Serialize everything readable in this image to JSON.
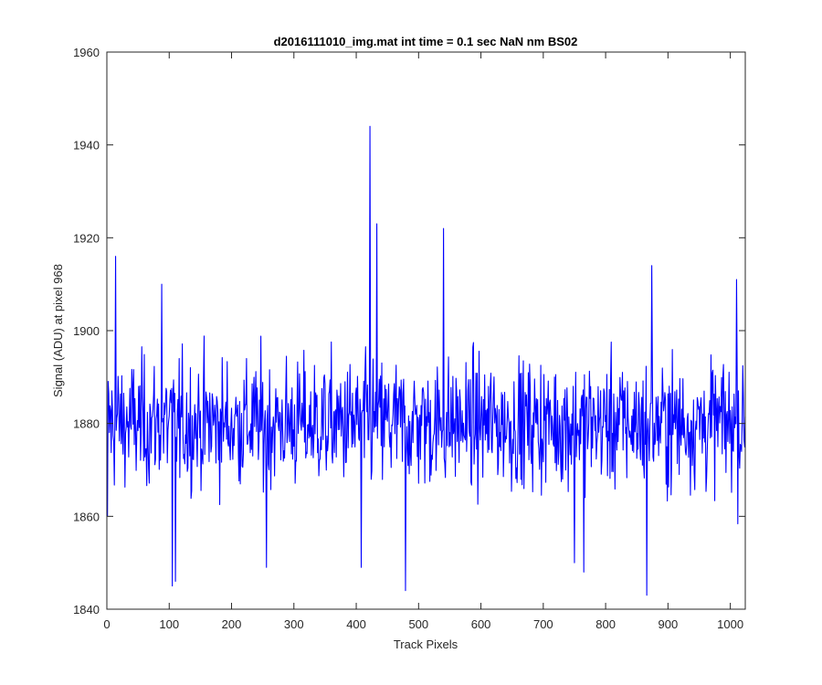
{
  "chart_data": {
    "type": "line",
    "title": "d2016111010_img.mat int time = 0.1 sec  NaN nm BS02",
    "xlabel": "Track Pixels",
    "ylabel": "Signal (ADU) at pixel 968",
    "xlim": [
      0,
      1024
    ],
    "ylim": [
      1840,
      1960
    ],
    "xticks": [
      0,
      100,
      200,
      300,
      400,
      500,
      600,
      700,
      800,
      900,
      1000
    ],
    "yticks": [
      1840,
      1860,
      1880,
      1900,
      1920,
      1940,
      1960
    ],
    "grid": false,
    "box": true,
    "line_color": "#0000ff",
    "axis_color": "#262626",
    "series": [
      {
        "x_start": 1,
        "x_step": 1,
        "approx_mean": 1880,
        "approx_std": 11,
        "n_points": 1024,
        "notable_points": [
          {
            "x": 1,
            "y": 1860
          },
          {
            "x": 14,
            "y": 1916
          },
          {
            "x": 88,
            "y": 1910
          },
          {
            "x": 105,
            "y": 1845
          },
          {
            "x": 110,
            "y": 1846
          },
          {
            "x": 256,
            "y": 1849
          },
          {
            "x": 408,
            "y": 1849
          },
          {
            "x": 422,
            "y": 1944
          },
          {
            "x": 433,
            "y": 1923
          },
          {
            "x": 479,
            "y": 1844
          },
          {
            "x": 540,
            "y": 1922
          },
          {
            "x": 750,
            "y": 1850
          },
          {
            "x": 765,
            "y": 1848
          },
          {
            "x": 866,
            "y": 1843
          },
          {
            "x": 874,
            "y": 1914
          },
          {
            "x": 1010,
            "y": 1911
          }
        ]
      }
    ]
  }
}
